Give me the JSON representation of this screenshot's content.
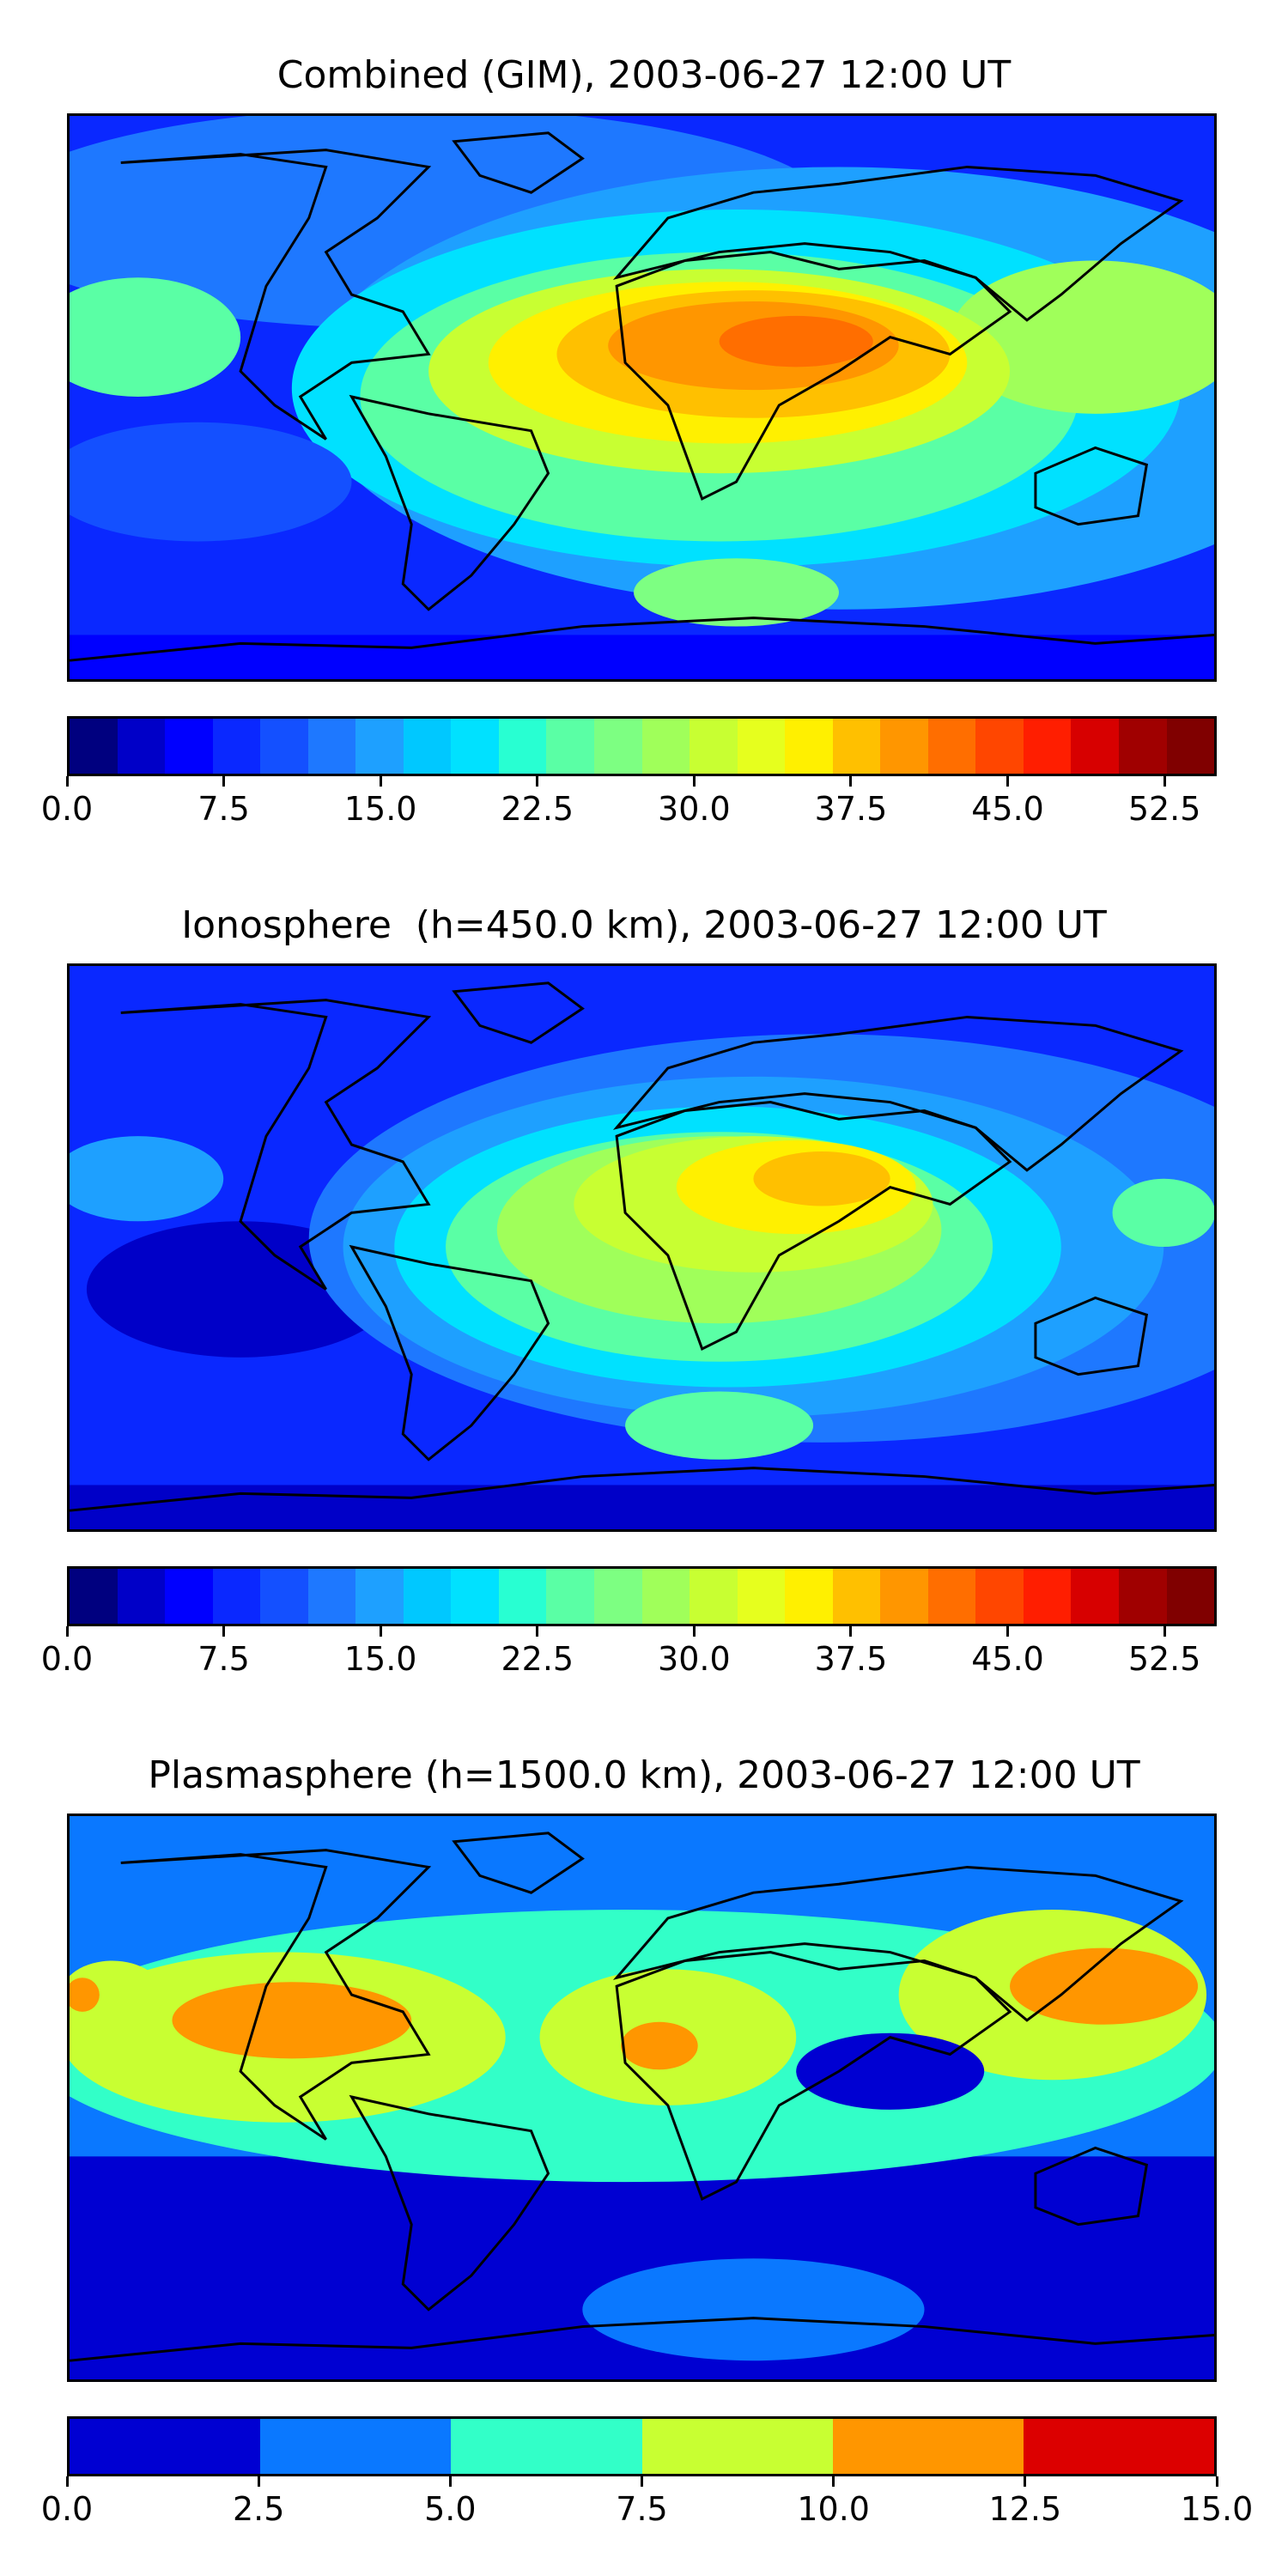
{
  "panels": [
    {
      "title": "Combined (GIM), 2003-06-27 12:00 UT",
      "colorbar": {
        "colors": [
          "#00007f",
          "#0000c8",
          "#0000ff",
          "#0a28ff",
          "#1450ff",
          "#1e78ff",
          "#1ea0ff",
          "#00c8ff",
          "#00e1ff",
          "#28ffd2",
          "#5affa5",
          "#7dff82",
          "#a0ff5a",
          "#c8ff32",
          "#e6ff1e",
          "#fff000",
          "#ffc000",
          "#ff9600",
          "#ff6e00",
          "#ff4600",
          "#ff1e00",
          "#d70000",
          "#a00000",
          "#800000"
        ],
        "min": 0,
        "max": 55,
        "tick_values": [
          0,
          7.5,
          15,
          22.5,
          30,
          37.5,
          45,
          52.5
        ],
        "tick_labels": [
          "0.0",
          "7.5",
          "15.0",
          "22.5",
          "30.0",
          "37.5",
          "45.0",
          "52.5"
        ]
      }
    },
    {
      "title": "Ionosphere  (h=450.0 km), 2003-06-27 12:00 UT",
      "colorbar": {
        "colors": [
          "#00007f",
          "#0000c8",
          "#0000ff",
          "#0a28ff",
          "#1450ff",
          "#1e78ff",
          "#1ea0ff",
          "#00c8ff",
          "#00e1ff",
          "#28ffd2",
          "#5affa5",
          "#7dff82",
          "#a0ff5a",
          "#c8ff32",
          "#e6ff1e",
          "#fff000",
          "#ffc000",
          "#ff9600",
          "#ff6e00",
          "#ff4600",
          "#ff1e00",
          "#d70000",
          "#a00000",
          "#800000"
        ],
        "min": 0,
        "max": 55,
        "tick_values": [
          0,
          7.5,
          15,
          22.5,
          30,
          37.5,
          45,
          52.5
        ],
        "tick_labels": [
          "0.0",
          "7.5",
          "15.0",
          "22.5",
          "30.0",
          "37.5",
          "45.0",
          "52.5"
        ]
      }
    },
    {
      "title": "Plasmasphere (h=1500.0 km), 2003-06-27 12:00 UT",
      "colorbar": {
        "colors": [
          "#0000d2",
          "#0a78ff",
          "#32ffc8",
          "#c8ff32",
          "#ff9600",
          "#dc0000"
        ],
        "min": 0,
        "max": 15,
        "tick_values": [
          0,
          2.5,
          5,
          7.5,
          10,
          12.5,
          15
        ],
        "tick_labels": [
          "0.0",
          "2.5",
          "5.0",
          "7.5",
          "10.0",
          "12.5",
          "15.0"
        ]
      }
    }
  ]
}
